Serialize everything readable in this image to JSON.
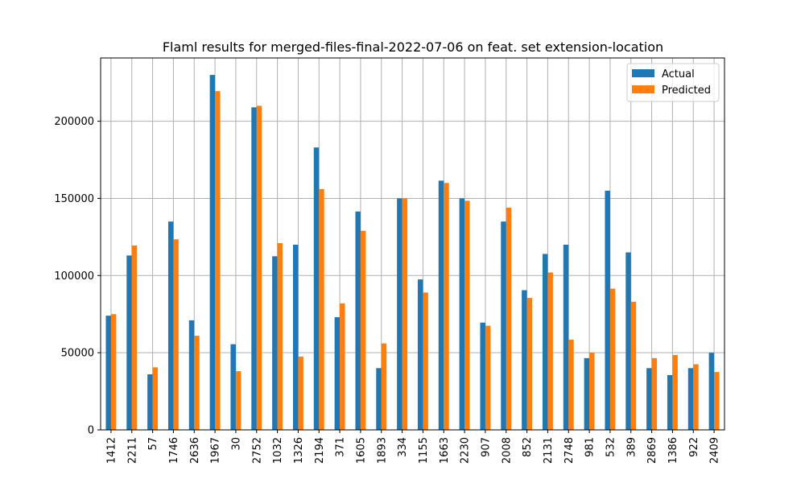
{
  "chart_data": {
    "type": "bar",
    "title": "Flaml results for merged-files-final-2022-07-06 on feat. set extension-location",
    "xlabel": "",
    "ylabel": "",
    "categories": [
      "1412",
      "2211",
      "57",
      "1746",
      "2636",
      "1967",
      "30",
      "2752",
      "1032",
      "1326",
      "2194",
      "371",
      "1605",
      "1893",
      "334",
      "1155",
      "1663",
      "2230",
      "907",
      "2008",
      "852",
      "2131",
      "2748",
      "981",
      "532",
      "389",
      "2869",
      "1386",
      "922",
      "2409"
    ],
    "series": [
      {
        "name": "Actual",
        "color": "#1f77b4",
        "values": [
          74000,
          113000,
          36000,
          135000,
          71000,
          230000,
          55500,
          209000,
          112500,
          120000,
          183000,
          73000,
          141500,
          40000,
          150000,
          97500,
          161500,
          150000,
          69500,
          135000,
          90500,
          114000,
          120000,
          46500,
          155000,
          115000,
          40000,
          35500,
          40000,
          50000
        ]
      },
      {
        "name": "Predicted",
        "color": "#ff7f0e",
        "values": [
          75000,
          119500,
          40500,
          123500,
          61000,
          219500,
          38000,
          210000,
          121000,
          47500,
          156000,
          82000,
          129000,
          56000,
          150000,
          89000,
          160000,
          148500,
          67500,
          144000,
          85500,
          102000,
          58500,
          50000,
          91500,
          83000,
          46500,
          48500,
          42500,
          37500
        ]
      }
    ],
    "yticks": [
      0,
      50000,
      100000,
      150000,
      200000
    ],
    "ylim": [
      0,
      241000
    ],
    "grid": true,
    "legend": "top-right"
  }
}
